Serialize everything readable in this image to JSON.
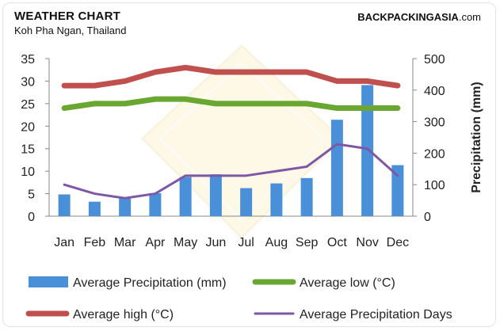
{
  "header": {
    "title": "WEATHER CHART",
    "subtitle": "Koh Pha Ngan, Thailand",
    "brand_part1": "BACKPACKING",
    "brand_part2": "ASIA",
    "brand_part3": ".com"
  },
  "chart_data": {
    "type": "bar",
    "categories": [
      "Jan",
      "Feb",
      "Mar",
      "Apr",
      "May",
      "Jun",
      "Jul",
      "Aug",
      "Sep",
      "Oct",
      "Nov",
      "Dec"
    ],
    "y_left": {
      "ticks": [
        0,
        5,
        10,
        15,
        20,
        25,
        30,
        35
      ],
      "range": [
        0,
        35
      ]
    },
    "y_right": {
      "label": "Precipitation (mm)",
      "ticks": [
        0,
        100,
        200,
        300,
        400,
        500
      ],
      "range": [
        0,
        500
      ]
    },
    "series": [
      {
        "name": "Average Precipitation (mm)",
        "type": "bar",
        "axis": "right",
        "color": "#4a90d9",
        "values": [
          69,
          46,
          60,
          73,
          124,
          133,
          89,
          104,
          121,
          306,
          416,
          162
        ]
      },
      {
        "name": "Average low (°C)",
        "type": "line",
        "axis": "left",
        "color": "#6aa632",
        "values": [
          24,
          25,
          25,
          26,
          26,
          25,
          25,
          25,
          25,
          24,
          24,
          24
        ]
      },
      {
        "name": "Average high (°C)",
        "type": "line",
        "axis": "left",
        "color": "#c0504d",
        "values": [
          29,
          29,
          30,
          32,
          33,
          32,
          32,
          32,
          32,
          30,
          30,
          29
        ]
      },
      {
        "name": "Average Precipitation Days",
        "type": "line",
        "axis": "left",
        "color": "#7e57a7",
        "values": [
          7,
          5,
          4,
          5,
          9,
          9,
          9,
          10,
          11,
          16,
          15,
          9
        ]
      }
    ],
    "grid": false,
    "legend_position": "bottom"
  }
}
